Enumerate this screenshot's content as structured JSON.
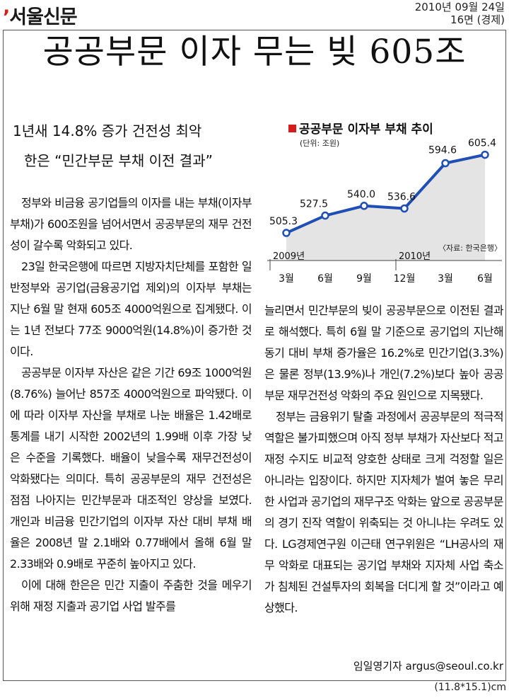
{
  "masthead": {
    "logo": "서울신문",
    "date": "2010년 09월 24일",
    "page": "16면 (경제)"
  },
  "headline": "공공부문 이자 무는 빚 605조",
  "subheads": [
    "1년새 14.8% 증가 건전성 최악",
    "한은 “민간부문 부채 이전 결과”"
  ],
  "body": {
    "left": [
      "정부와 비금융 공기업들의 이자를 내는 부채(이자부 부채)가 600조원을 넘어서면서 공공부문의 재무 건전성이 갈수록 악화되고 있다.",
      "23일 한국은행에 따르면 지방자치단체를 포함한 일반정부와 공기업(금융공기업 제외)의 이자부 부채는 지난 6월 말 현재 605조 4000억원으로 집계됐다. 이는 1년 전보다 77조 9000억원(14.8%)이 증가한 것이다.",
      "공공부문 이자부 자산은 같은 기간 69조 1000억원(8.76%) 늘어난 857조 4000억원으로 파악됐다. 이에 따라 이자부 자산을 부채로 나눈 배율은 1.42배로 통계를 내기 시작한 2002년의 1.99배 이후 가장 낮은 수준을 기록했다. 배율이 낮을수록 재무건전성이 악화됐다는 의미다. 특히 공공부문의 재무 건전성은 점점 나아지는 민간부문과 대조적인 양상을 보였다. 개인과 비금융 민간기업의 이자부 자산 대비 부채 배율은 2008년 말 2.1배와 0.77배에서 올해 6월 말 2.33배와 0.9배로 꾸준히 높아지고 있다.",
      "이에 대해 한은은 민간 지출이 주춤한 것을 메우기 위해 재정 지출과 공기업 사업 발주를"
    ],
    "right": [
      "늘리면서 민간부문의 빚이 공공부문으로 이전된 결과로 해석했다. 특히 6월 말 기준으로 공기업의 지난해 동기 대비 부채 증가율은 16.2%로 민간기업(3.3%)은 물론 정부(13.9%)나 개인(7.2%)보다 높아 공공부문 재무건전성 악화의 주요 원인으로 지목됐다.",
      "정부는 금융위기 탈출 과정에서 공공부문의 적극적 역할은 불가피했으며 아직 정부 부채가 자산보다 적고 재정 수지도 비교적 양호한 상태로 크게 걱정할 일은 아니라는 입장이다. 하지만 지자체가 벌여 놓은 무리한 사업과 공기업의 재무구조 악화는 앞으로 공공부문의 경기 진작 역할이 위축되는 것 아니냐는 우려도 있다. LG경제연구원 이근태 연구위원은 “LH공사의 재무 악화로 대표되는 공기업 부채와 지자체 사업 축소가 침체된 건설투자의 회복을 더디게 할 것”이라고 예상했다."
    ]
  },
  "byline": "임일영기자 argus@seoul.co.kr",
  "size_note": "(11.8*15.1)cm",
  "colors": {
    "accent": "#d61c1c",
    "line": "#1f4fb4",
    "area": "#e4e4e4"
  },
  "chart_data": {
    "type": "area",
    "title": "공공부문 이자부 부채 추이",
    "unit": "(단위: 조원)",
    "source": "〈자료: 한국은행〉",
    "categories": [
      "3월",
      "6월",
      "9월",
      "12월",
      "3월",
      "6월"
    ],
    "year_labels": [
      "2009년",
      "2010년"
    ],
    "values": [
      505.3,
      527.5,
      540.0,
      536.6,
      594.6,
      605.4
    ],
    "value_labels": [
      "505.3",
      "527.5",
      "540.0",
      "536.6",
      "594.6",
      "605.4"
    ],
    "ylim": [
      470,
      615
    ],
    "grid": false
  }
}
